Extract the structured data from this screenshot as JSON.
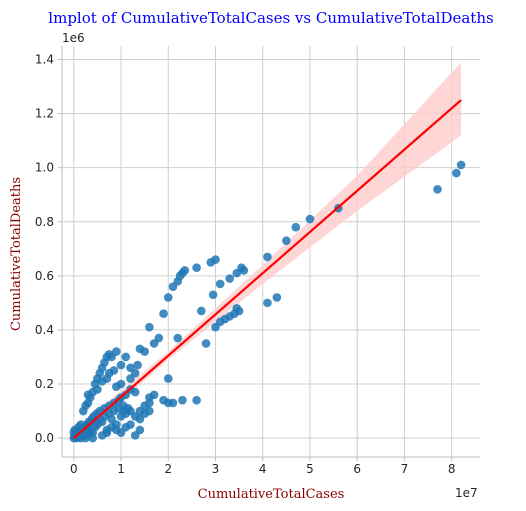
{
  "chart_data": {
    "type": "scatter",
    "title": "lmplot of CumulativeTotalCases vs CumulativeTotalDeaths",
    "xlabel": "CumulativeTotalCases",
    "ylabel": "CumulativeTotalDeaths",
    "x_offset_label": "1e7",
    "y_offset_label": "1e6",
    "xlim": [
      -0.25,
      8.6
    ],
    "ylim": [
      -0.07,
      1.45
    ],
    "xticks": [
      0,
      1,
      2,
      3,
      4,
      5,
      6,
      7,
      8
    ],
    "yticks": [
      0.0,
      0.2,
      0.4,
      0.6,
      0.8,
      1.0,
      1.2,
      1.4
    ],
    "xtick_labels": [
      "0",
      "1",
      "2",
      "3",
      "4",
      "5",
      "6",
      "7",
      "8"
    ],
    "ytick_labels": [
      "0.0",
      "0.2",
      "0.4",
      "0.6",
      "0.8",
      "1.0",
      "1.2",
      "1.4"
    ],
    "grid": true,
    "colors": {
      "points": "#1f77b4",
      "line": "#ff0000",
      "band": "#ffcccc",
      "title": "#0000ff",
      "axis_label": "#8b0000"
    },
    "regression": {
      "x": [
        0,
        8.2
      ],
      "y": [
        0.0,
        1.25
      ]
    },
    "ci_band": {
      "x": [
        0,
        2,
        4,
        6,
        8.2
      ],
      "lower": [
        -0.02,
        0.29,
        0.57,
        0.84,
        1.12
      ],
      "upper": [
        0.03,
        0.32,
        0.64,
        0.97,
        1.39
      ]
    },
    "points": [
      [
        0.0,
        0.0
      ],
      [
        0.02,
        0.005
      ],
      [
        0.05,
        0.01
      ],
      [
        0.08,
        0.003
      ],
      [
        0.1,
        0.02
      ],
      [
        0.12,
        0.01
      ],
      [
        0.15,
        0.03
      ],
      [
        0.18,
        0.008
      ],
      [
        0.2,
        0.015
      ],
      [
        0.22,
        0.04
      ],
      [
        0.25,
        0.02
      ],
      [
        0.28,
        0.05
      ],
      [
        0.3,
        0.01
      ],
      [
        0.32,
        0.06
      ],
      [
        0.35,
        0.03
      ],
      [
        0.38,
        0.07
      ],
      [
        0.4,
        0.02
      ],
      [
        0.42,
        0.08
      ],
      [
        0.45,
        0.04
      ],
      [
        0.48,
        0.09
      ],
      [
        0.5,
        0.05
      ],
      [
        0.55,
        0.1
      ],
      [
        0.6,
        0.06
      ],
      [
        0.65,
        0.11
      ],
      [
        0.7,
        0.03
      ],
      [
        0.75,
        0.12
      ],
      [
        0.8,
        0.07
      ],
      [
        0.85,
        0.13
      ],
      [
        0.9,
        0.05
      ],
      [
        0.95,
        0.14
      ],
      [
        1.0,
        0.08
      ],
      [
        1.05,
        0.1
      ],
      [
        1.1,
        0.09
      ],
      [
        1.15,
        0.11
      ],
      [
        1.2,
        0.1
      ],
      [
        0.3,
        0.13
      ],
      [
        0.35,
        0.15
      ],
      [
        0.4,
        0.17
      ],
      [
        0.45,
        0.2
      ],
      [
        0.5,
        0.22
      ],
      [
        0.55,
        0.24
      ],
      [
        0.6,
        0.26
      ],
      [
        0.65,
        0.28
      ],
      [
        0.7,
        0.3
      ],
      [
        0.75,
        0.31
      ],
      [
        0.8,
        0.3
      ],
      [
        0.9,
        0.32
      ],
      [
        0.6,
        0.21
      ],
      [
        0.5,
        0.18
      ],
      [
        0.2,
        0.1
      ],
      [
        0.25,
        0.12
      ],
      [
        0.3,
        0.16
      ],
      [
        0.15,
        0.05
      ],
      [
        0.1,
        0.04
      ],
      [
        0.05,
        0.02
      ],
      [
        0.0,
        0.02
      ],
      [
        0.02,
        0.03
      ],
      [
        0.7,
        0.22
      ],
      [
        0.75,
        0.24
      ],
      [
        0.85,
        0.25
      ],
      [
        1.0,
        0.2
      ],
      [
        1.2,
        0.22
      ],
      [
        1.3,
        0.24
      ],
      [
        1.35,
        0.27
      ],
      [
        1.4,
        0.33
      ],
      [
        1.5,
        0.32
      ],
      [
        1.6,
        0.41
      ],
      [
        1.7,
        0.35
      ],
      [
        1.8,
        0.37
      ],
      [
        1.9,
        0.46
      ],
      [
        1.0,
        0.27
      ],
      [
        1.1,
        0.3
      ],
      [
        1.2,
        0.26
      ],
      [
        0.9,
        0.19
      ],
      [
        1.0,
        0.15
      ],
      [
        1.1,
        0.16
      ],
      [
        1.2,
        0.18
      ],
      [
        1.3,
        0.17
      ],
      [
        1.4,
        0.1
      ],
      [
        1.5,
        0.12
      ],
      [
        1.6,
        0.15
      ],
      [
        1.2,
        0.05
      ],
      [
        1.3,
        0.08
      ],
      [
        1.4,
        0.03
      ],
      [
        1.5,
        0.09
      ],
      [
        1.6,
        0.1
      ],
      [
        1.7,
        0.16
      ],
      [
        1.9,
        0.14
      ],
      [
        2.1,
        0.13
      ],
      [
        2.3,
        0.14
      ],
      [
        2.6,
        0.14
      ],
      [
        2.0,
        0.22
      ],
      [
        1.4,
        0.07
      ],
      [
        1.1,
        0.04
      ],
      [
        1.0,
        0.02
      ],
      [
        0.9,
        0.03
      ],
      [
        0.8,
        0.04
      ],
      [
        0.7,
        0.02
      ],
      [
        1.3,
        0.01
      ],
      [
        2.0,
        0.13
      ],
      [
        2.0,
        0.52
      ],
      [
        2.1,
        0.56
      ],
      [
        2.2,
        0.58
      ],
      [
        2.25,
        0.6
      ],
      [
        2.3,
        0.61
      ],
      [
        2.35,
        0.62
      ],
      [
        2.6,
        0.63
      ],
      [
        2.9,
        0.65
      ],
      [
        3.0,
        0.66
      ],
      [
        2.95,
        0.53
      ],
      [
        2.7,
        0.47
      ],
      [
        2.8,
        0.35
      ],
      [
        3.0,
        0.41
      ],
      [
        3.1,
        0.43
      ],
      [
        3.2,
        0.44
      ],
      [
        3.3,
        0.45
      ],
      [
        3.4,
        0.46
      ],
      [
        3.5,
        0.47
      ],
      [
        3.45,
        0.48
      ],
      [
        3.1,
        0.57
      ],
      [
        3.3,
        0.59
      ],
      [
        3.45,
        0.61
      ],
      [
        3.55,
        0.63
      ],
      [
        3.6,
        0.62
      ],
      [
        4.1,
        0.5
      ],
      [
        4.3,
        0.52
      ],
      [
        4.1,
        0.67
      ],
      [
        4.5,
        0.73
      ],
      [
        4.7,
        0.78
      ],
      [
        5.0,
        0.81
      ],
      [
        5.6,
        0.85
      ],
      [
        7.7,
        0.92
      ],
      [
        8.1,
        0.98
      ],
      [
        8.2,
        1.01
      ],
      [
        2.2,
        0.37
      ],
      [
        1.6,
        0.13
      ],
      [
        0.4,
        0.0
      ],
      [
        0.6,
        0.01
      ],
      [
        0.3,
        0.04
      ],
      [
        0.45,
        0.06
      ],
      [
        0.55,
        0.07
      ],
      [
        0.65,
        0.08
      ],
      [
        0.75,
        0.09
      ],
      [
        0.85,
        0.1
      ],
      [
        0.95,
        0.11
      ],
      [
        1.05,
        0.12
      ],
      [
        0.15,
        0.0
      ],
      [
        0.25,
        0.0
      ],
      [
        0.35,
        0.02
      ],
      [
        0.05,
        0.0
      ]
    ]
  }
}
